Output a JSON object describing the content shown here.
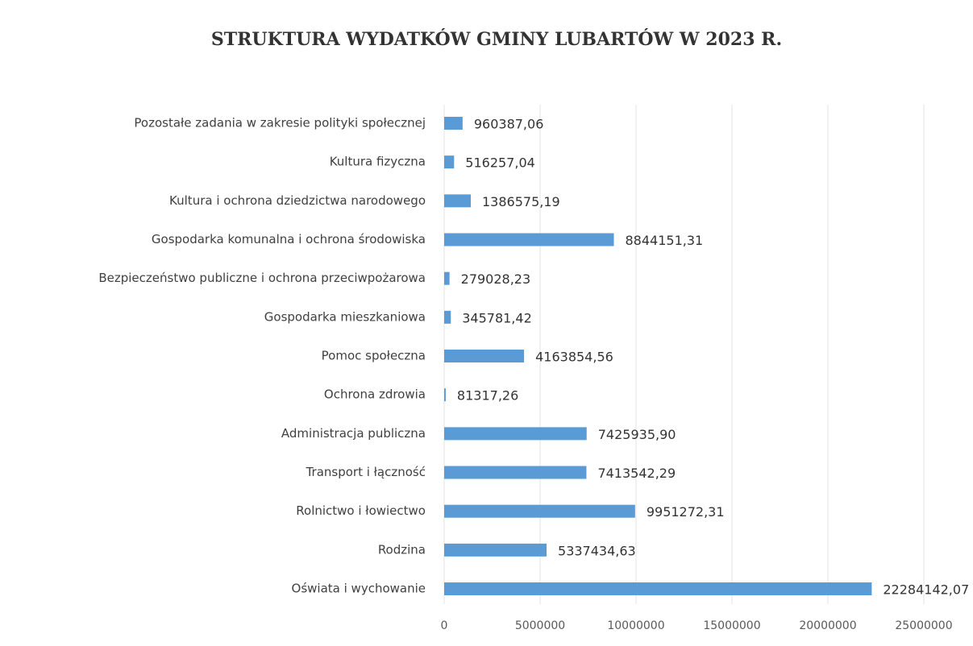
{
  "chart_data": {
    "type": "bar",
    "orientation": "horizontal",
    "title": "STRUKTURA WYDATKÓW GMINY LUBARTÓW W 2023 R.",
    "categories": [
      "Pozostałe zadania w zakresie polityki społecznej",
      "Kultura fizyczna",
      "Kultura i ochrona dziedzictwa narodowego",
      "Gospodarka komunalna i ochrona środowiska",
      "Bezpieczeństwo publiczne i ochrona przeciwpożarowa",
      "Gospodarka mieszkaniowa",
      "Pomoc społeczna",
      "Ochrona zdrowia",
      "Administracja publiczna",
      "Transport i łączność",
      "Rolnictwo i łowiectwo",
      "Rodzina",
      "Oświata i wychowanie"
    ],
    "values": [
      960387.06,
      516257.04,
      1386575.19,
      8844151.31,
      279028.23,
      345781.42,
      4163854.56,
      81317.26,
      7425935.9,
      7413542.29,
      9951272.31,
      5337434.63,
      22284142.07
    ],
    "value_labels": [
      "960387,06",
      "516257,04",
      "1386575,19",
      "8844151,31",
      "279028,23",
      "345781,42",
      "4163854,56",
      "81317,26",
      "7425935,90",
      "7413542,29",
      "9951272,31",
      "5337434,63",
      "22284142,07"
    ],
    "color": "#5b9bd5",
    "xlim": [
      0,
      25000000
    ],
    "xticks": [
      0,
      5000000,
      10000000,
      15000000,
      20000000,
      25000000
    ],
    "grid": true
  }
}
